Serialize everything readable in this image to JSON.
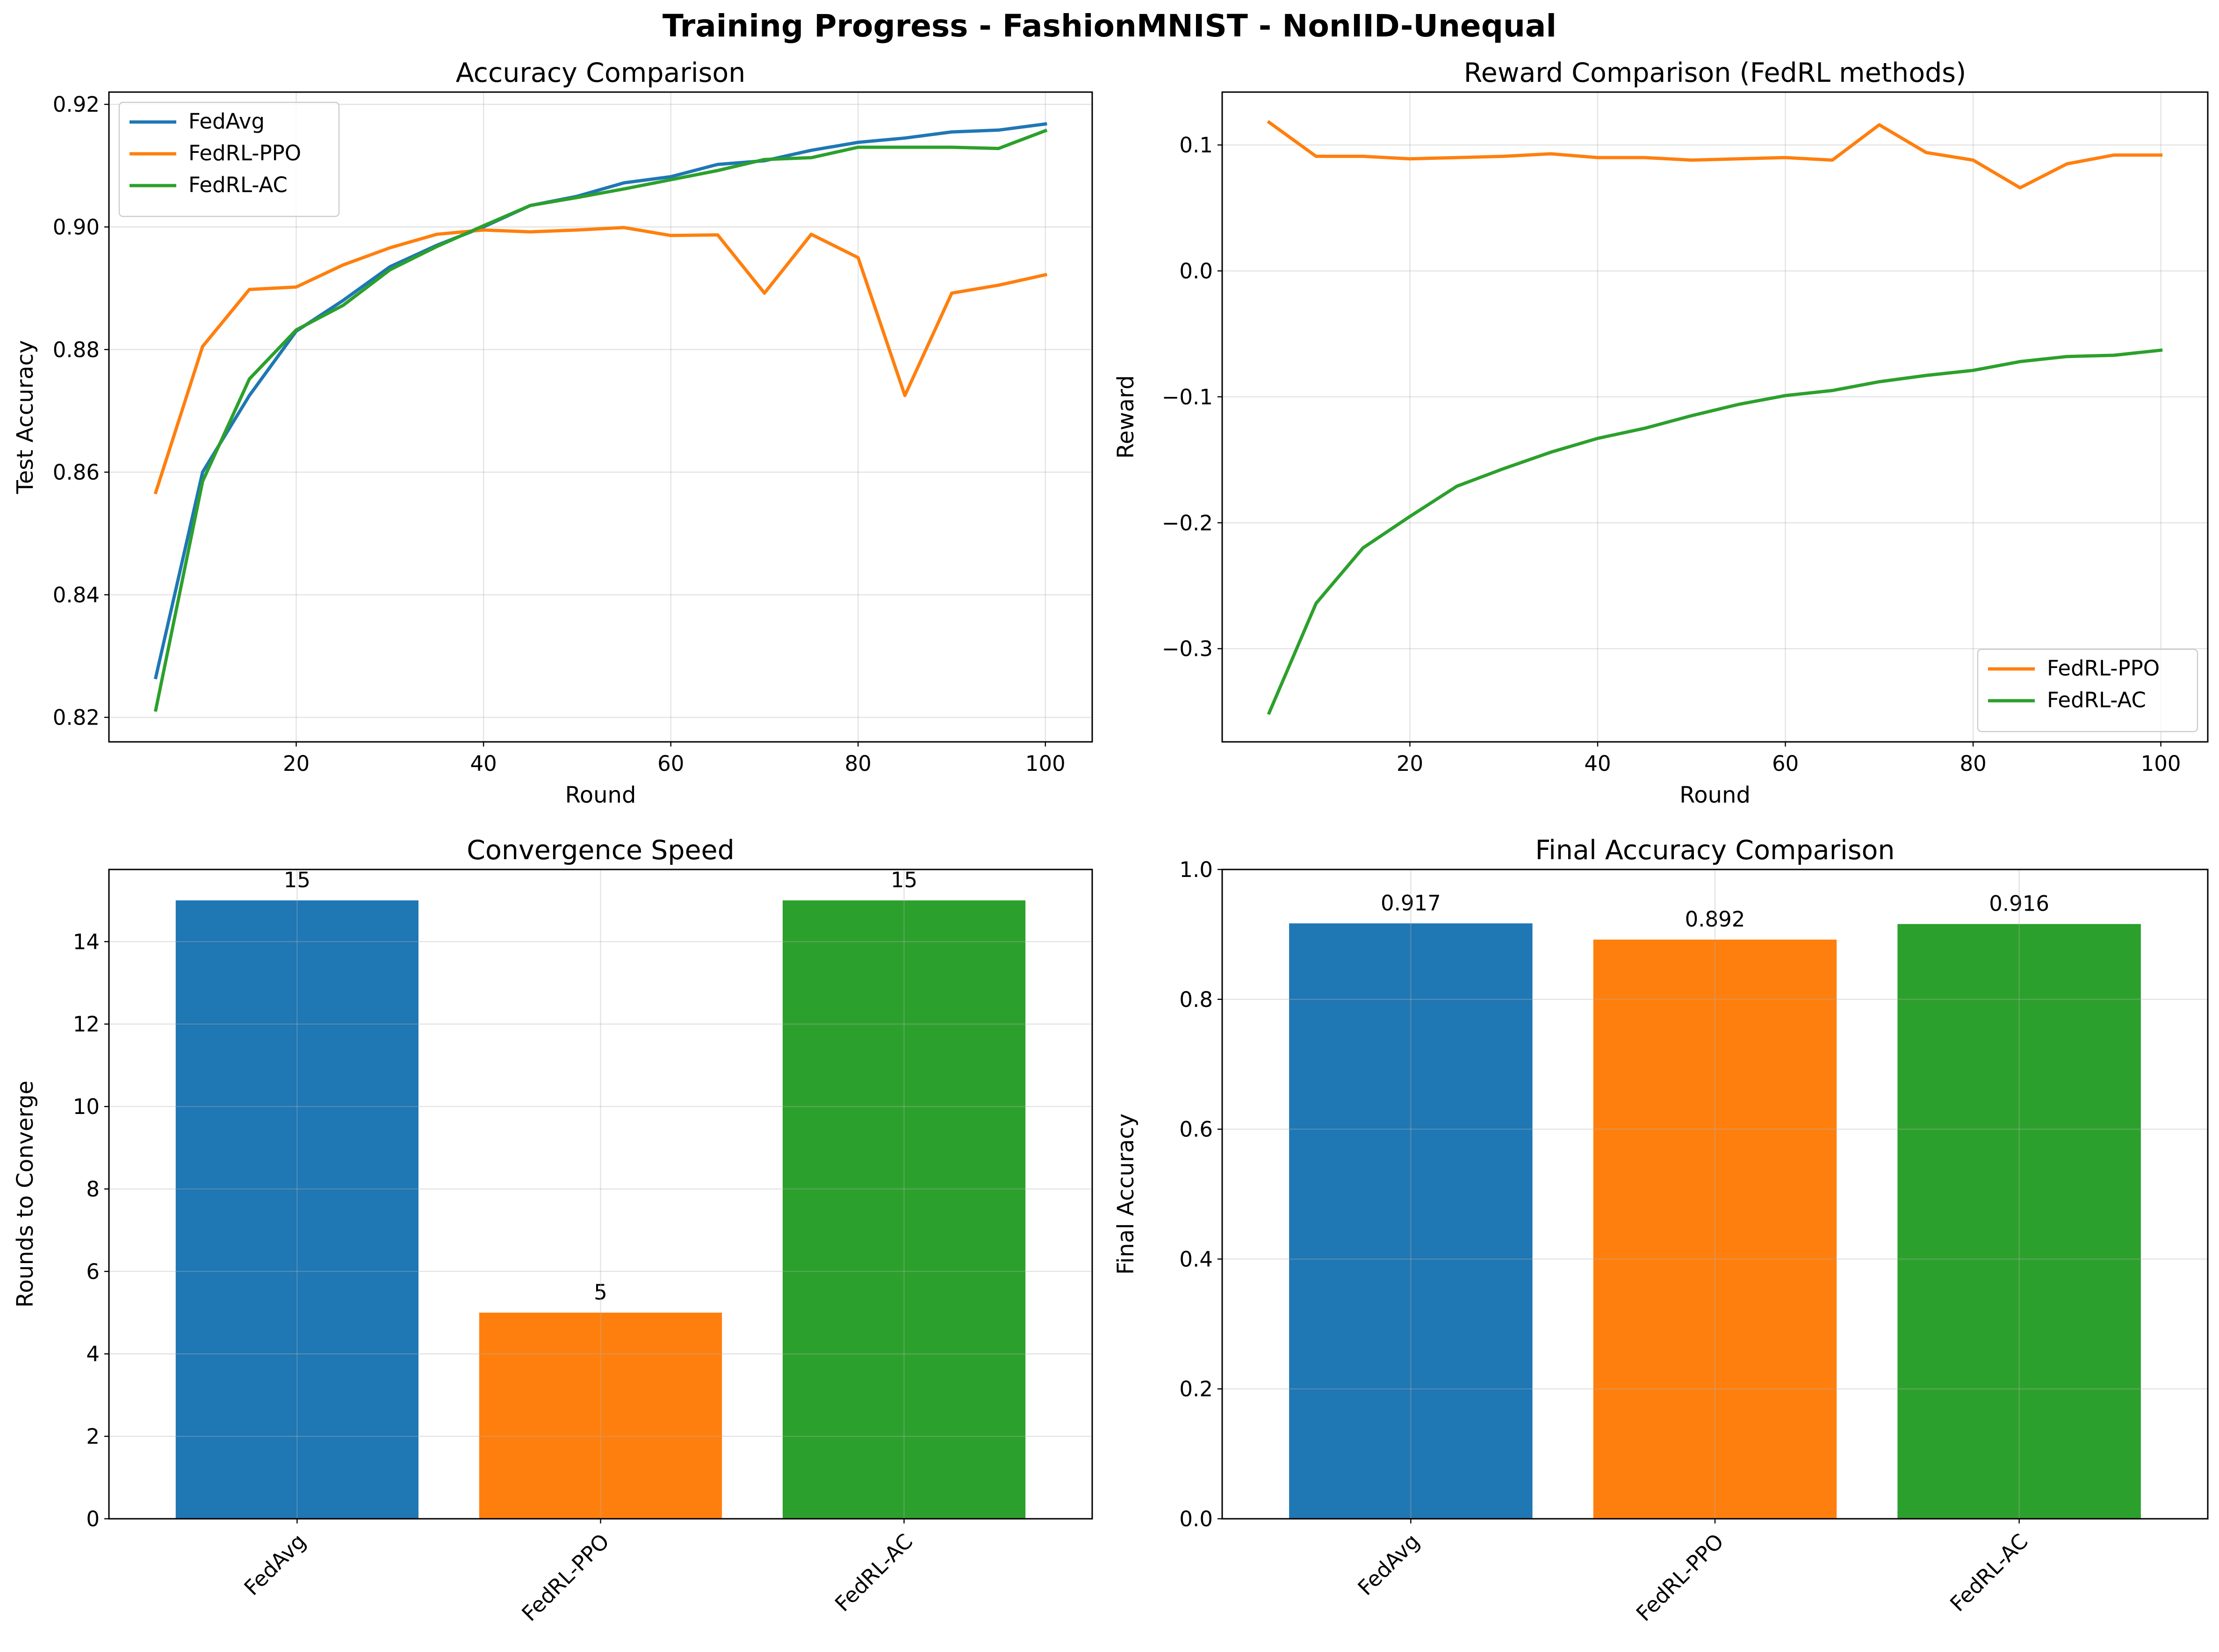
{
  "figure": {
    "title": "Training Progress - FashionMNIST - NonIID-Unequal"
  },
  "colors": {
    "FedAvg": "#1f77b4",
    "FedRL-PPO": "#ff7f0e",
    "FedRL-AC": "#2ca02c"
  },
  "chart_data": [
    {
      "type": "line",
      "title": "Accuracy Comparison",
      "xlabel": "Round",
      "ylabel": "Test Accuracy",
      "xlim": [
        0,
        105
      ],
      "ylim": [
        0.816,
        0.922
      ],
      "xticks": [
        20,
        40,
        60,
        80,
        100
      ],
      "yticks": [
        0.82,
        0.84,
        0.86,
        0.88,
        0.9,
        0.92
      ],
      "tick_decimals": 2,
      "grid": true,
      "legend": "upper-left",
      "x": [
        5,
        10,
        15,
        20,
        25,
        30,
        35,
        40,
        45,
        50,
        55,
        60,
        65,
        70,
        75,
        80,
        85,
        90,
        95,
        100
      ],
      "series": [
        {
          "name": "FedAvg",
          "color": "#1f77b4",
          "values": [
            0.8265,
            0.86,
            0.8725,
            0.883,
            0.888,
            0.8935,
            0.897,
            0.9,
            0.9035,
            0.905,
            0.9072,
            0.9082,
            0.9102,
            0.9108,
            0.9125,
            0.9138,
            0.9145,
            0.9155,
            0.9158,
            0.9168
          ]
        },
        {
          "name": "FedRL-PPO",
          "color": "#ff7f0e",
          "values": [
            0.8567,
            0.8805,
            0.8898,
            0.8902,
            0.8938,
            0.8966,
            0.8988,
            0.8995,
            0.8992,
            0.8995,
            0.8999,
            0.8986,
            0.8987,
            0.8892,
            0.8988,
            0.895,
            0.8725,
            0.8892,
            0.8905,
            0.8922
          ]
        },
        {
          "name": "FedRL-AC",
          "color": "#2ca02c",
          "values": [
            0.8212,
            0.8585,
            0.8752,
            0.8832,
            0.8872,
            0.893,
            0.8968,
            0.9002,
            0.9035,
            0.9048,
            0.9062,
            0.9077,
            0.9092,
            0.911,
            0.9113,
            0.913,
            0.913,
            0.913,
            0.9128,
            0.9157
          ]
        }
      ]
    },
    {
      "type": "line",
      "title": "Reward Comparison (FedRL methods)",
      "xlabel": "Round",
      "ylabel": "Reward",
      "xlim": [
        0,
        105
      ],
      "ylim": [
        -0.374,
        0.142
      ],
      "xticks": [
        20,
        40,
        60,
        80,
        100
      ],
      "yticks": [
        -0.3,
        -0.2,
        -0.1,
        0.0,
        0.1
      ],
      "tick_decimals": 1,
      "grid": true,
      "legend": "lower-right",
      "x": [
        5,
        10,
        15,
        20,
        25,
        30,
        35,
        40,
        45,
        50,
        55,
        60,
        65,
        70,
        75,
        80,
        85,
        90,
        95,
        100
      ],
      "series": [
        {
          "name": "FedRL-PPO",
          "color": "#ff7f0e",
          "values": [
            0.118,
            0.091,
            0.091,
            0.089,
            0.09,
            0.091,
            0.093,
            0.09,
            0.09,
            0.088,
            0.089,
            0.09,
            0.088,
            0.116,
            0.094,
            0.088,
            0.066,
            0.085,
            0.092,
            0.092
          ]
        },
        {
          "name": "FedRL-AC",
          "color": "#2ca02c",
          "values": [
            -0.351,
            -0.264,
            -0.22,
            -0.195,
            -0.171,
            -0.157,
            -0.144,
            -0.133,
            -0.125,
            -0.115,
            -0.106,
            -0.099,
            -0.095,
            -0.088,
            -0.083,
            -0.079,
            -0.072,
            -0.068,
            -0.067,
            -0.063
          ]
        }
      ]
    },
    {
      "type": "bar",
      "title": "Convergence Speed",
      "xlabel": "",
      "ylabel": "Rounds to Converge",
      "categories": [
        "FedAvg",
        "FedRL-PPO",
        "FedRL-AC"
      ],
      "values": [
        15,
        5,
        15
      ],
      "value_labels": [
        "15",
        "5",
        "15"
      ],
      "colors": [
        "#1f77b4",
        "#ff7f0e",
        "#2ca02c"
      ],
      "ylim": [
        0,
        15.75
      ],
      "yticks": [
        0,
        2,
        4,
        6,
        8,
        10,
        12,
        14
      ],
      "tick_decimals": 0,
      "grid": true
    },
    {
      "type": "bar",
      "title": "Final Accuracy Comparison",
      "xlabel": "",
      "ylabel": "Final Accuracy",
      "categories": [
        "FedAvg",
        "FedRL-PPO",
        "FedRL-AC"
      ],
      "values": [
        0.917,
        0.892,
        0.916
      ],
      "value_labels": [
        "0.917",
        "0.892",
        "0.916"
      ],
      "colors": [
        "#1f77b4",
        "#ff7f0e",
        "#2ca02c"
      ],
      "ylim": [
        0,
        1.0
      ],
      "yticks": [
        0.0,
        0.2,
        0.4,
        0.6,
        0.8,
        1.0
      ],
      "tick_decimals": 1,
      "grid": true
    }
  ]
}
